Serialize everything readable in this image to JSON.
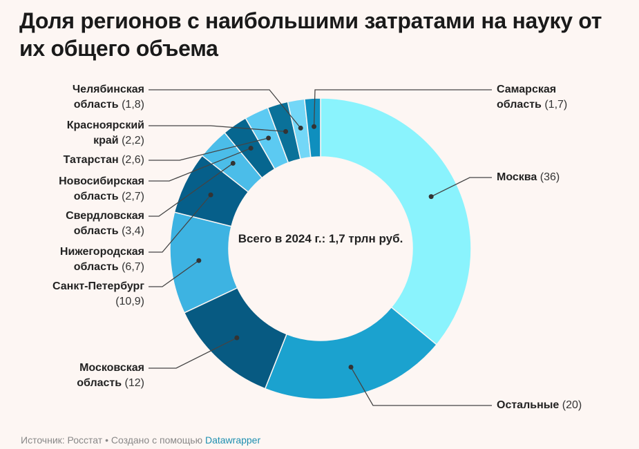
{
  "title": "Доля регионов с наибольшими затратами на науку от их общего объема",
  "center_label": "Всего в 2024 г.: 1,7 трлн руб.",
  "footer": {
    "source": "Источник: Росстат • Создано с помощью ",
    "link": "Datawrapper"
  },
  "chart_data": {
    "type": "pie",
    "subtype": "donut",
    "title": "Доля регионов с наибольшими затратами на науку от их общего объема",
    "slices": [
      {
        "name": "Москва",
        "value": 36,
        "label": "(36)",
        "color": "#8af3fd"
      },
      {
        "name": "Остальные",
        "value": 20,
        "label": "(20)",
        "color": "#1ba2cf"
      },
      {
        "name": "Московская область",
        "value": 12,
        "label": "(12)",
        "color": "#075a82"
      },
      {
        "name": "Санкт-Петербург",
        "value": 10.9,
        "label": "(10,9)",
        "color": "#3db3e2"
      },
      {
        "name": "Нижегородская область",
        "value": 6.7,
        "label": "(6,7)",
        "color": "#065f8a"
      },
      {
        "name": "Свердловская область",
        "value": 3.4,
        "label": "(3,4)",
        "color": "#4bbde9"
      },
      {
        "name": "Новосибирская область",
        "value": 2.7,
        "label": "(2,7)",
        "color": "#06668f"
      },
      {
        "name": "Татарстан",
        "value": 2.6,
        "label": "(2,6)",
        "color": "#5ccaf2"
      },
      {
        "name": "Красноярский край",
        "value": 2.2,
        "label": "(2,2)",
        "color": "#0a7199"
      },
      {
        "name": "Челябинская область",
        "value": 1.8,
        "label": "(1,8)",
        "color": "#73d7f7"
      },
      {
        "name": "Самарская область",
        "value": 1.7,
        "label": "(1,7)",
        "color": "#0f8fbe"
      }
    ]
  }
}
